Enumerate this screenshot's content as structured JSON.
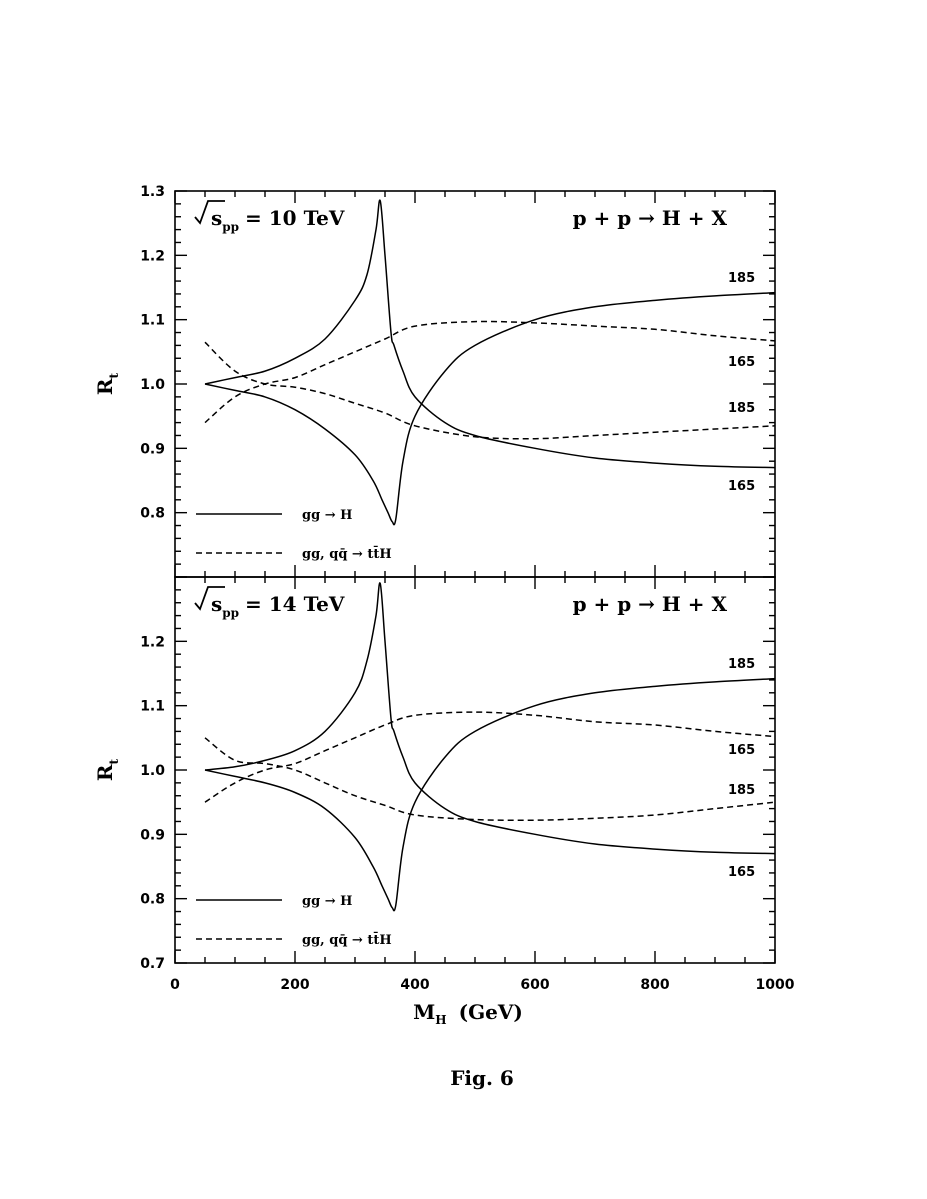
{
  "figure_caption": "Fig. 6",
  "chart_data": [
    {
      "type": "line",
      "panel": "top",
      "energy_label_prefix": "s",
      "energy_label_sub": "pp",
      "energy_label_value": "= 10 TeV",
      "process_label": "p + p → H + X",
      "ylabel": "R",
      "ylabel_sub": "t",
      "xlabel": "",
      "xlim": [
        0,
        1000
      ],
      "ylim": [
        0.7,
        1.3
      ],
      "yticks": [
        0.8,
        0.9,
        1.0,
        1.1,
        1.2,
        1.3
      ],
      "ytick_labels": [
        "0.8",
        "0.9",
        "1.0",
        "1.1",
        "1.2",
        "1.3"
      ],
      "legend": [
        {
          "text": "gg → H",
          "style": "solid"
        },
        {
          "text": "gg, qq̄ → tt̄H",
          "style": "dashed"
        }
      ],
      "series": [
        {
          "label": "165",
          "style": "solid",
          "x": [
            50,
            100,
            150,
            200,
            250,
            300,
            320,
            335,
            342,
            350,
            360,
            365,
            380,
            400,
            450,
            500,
            600,
            700,
            800,
            900,
            1000
          ],
          "y": [
            1.0,
            1.01,
            1.02,
            1.04,
            1.07,
            1.13,
            1.17,
            1.24,
            1.285,
            1.2,
            1.08,
            1.06,
            1.02,
            0.98,
            0.94,
            0.92,
            0.9,
            0.885,
            0.877,
            0.872,
            0.87
          ]
        },
        {
          "label": "185",
          "style": "solid",
          "x": [
            50,
            100,
            150,
            200,
            250,
            300,
            330,
            345,
            355,
            362,
            368,
            380,
            400,
            450,
            500,
            600,
            700,
            800,
            900,
            1000
          ],
          "y": [
            1.0,
            0.99,
            0.98,
            0.96,
            0.93,
            0.89,
            0.85,
            0.82,
            0.8,
            0.786,
            0.79,
            0.88,
            0.95,
            1.02,
            1.06,
            1.1,
            1.12,
            1.13,
            1.137,
            1.142
          ]
        },
        {
          "label": "165",
          "style": "dashed",
          "x": [
            50,
            100,
            150,
            200,
            250,
            300,
            350,
            400,
            500,
            600,
            700,
            800,
            900,
            1000
          ],
          "y": [
            0.94,
            0.98,
            1.0,
            1.01,
            1.03,
            1.05,
            1.07,
            1.09,
            1.097,
            1.095,
            1.09,
            1.085,
            1.075,
            1.067
          ]
        },
        {
          "label": "185",
          "style": "dashed",
          "x": [
            50,
            100,
            150,
            200,
            250,
            300,
            350,
            400,
            500,
            600,
            700,
            800,
            900,
            1000
          ],
          "y": [
            1.065,
            1.02,
            1.0,
            0.995,
            0.985,
            0.97,
            0.955,
            0.935,
            0.918,
            0.915,
            0.92,
            0.925,
            0.93,
            0.935
          ]
        }
      ]
    },
    {
      "type": "line",
      "panel": "bottom",
      "energy_label_prefix": "s",
      "energy_label_sub": "pp",
      "energy_label_value": "= 14 TeV",
      "process_label": "p + p → H + X",
      "ylabel": "R",
      "ylabel_sub": "t",
      "xlabel": "M",
      "xlabel_sub": "H",
      "xlabel_unit": "(GeV)",
      "xlim": [
        0,
        1000
      ],
      "ylim": [
        0.7,
        1.3
      ],
      "xticks": [
        0,
        200,
        400,
        600,
        800,
        1000
      ],
      "xtick_labels": [
        "0",
        "200",
        "400",
        "600",
        "800",
        "1000"
      ],
      "yticks": [
        0.7,
        0.8,
        0.9,
        1.0,
        1.1,
        1.2
      ],
      "ytick_labels": [
        "0.7",
        "0.8",
        "0.9",
        "1.0",
        "1.1",
        "1.2"
      ],
      "legend": [
        {
          "text": "gg → H",
          "style": "solid"
        },
        {
          "text": "gg, qq̄ → tt̄H",
          "style": "dashed"
        }
      ],
      "series": [
        {
          "label": "165",
          "style": "solid",
          "x": [
            50,
            100,
            150,
            200,
            250,
            300,
            320,
            335,
            342,
            350,
            360,
            365,
            380,
            400,
            450,
            500,
            600,
            700,
            800,
            900,
            1000
          ],
          "y": [
            1.0,
            1.005,
            1.015,
            1.03,
            1.06,
            1.12,
            1.17,
            1.24,
            1.29,
            1.2,
            1.08,
            1.06,
            1.02,
            0.98,
            0.94,
            0.92,
            0.9,
            0.885,
            0.877,
            0.872,
            0.87
          ]
        },
        {
          "label": "185",
          "style": "solid",
          "x": [
            50,
            100,
            150,
            200,
            250,
            300,
            330,
            345,
            355,
            362,
            368,
            380,
            400,
            450,
            500,
            600,
            700,
            800,
            900,
            1000
          ],
          "y": [
            1.0,
            0.99,
            0.98,
            0.965,
            0.94,
            0.895,
            0.85,
            0.82,
            0.8,
            0.786,
            0.79,
            0.88,
            0.95,
            1.02,
            1.06,
            1.1,
            1.12,
            1.13,
            1.137,
            1.142
          ]
        },
        {
          "label": "165",
          "style": "dashed",
          "x": [
            50,
            100,
            150,
            200,
            250,
            300,
            350,
            400,
            500,
            600,
            700,
            800,
            900,
            1000
          ],
          "y": [
            0.95,
            0.98,
            1.0,
            1.01,
            1.03,
            1.05,
            1.07,
            1.085,
            1.09,
            1.085,
            1.075,
            1.07,
            1.06,
            1.052
          ]
        },
        {
          "label": "185",
          "style": "dashed",
          "x": [
            50,
            100,
            150,
            200,
            250,
            300,
            350,
            400,
            500,
            600,
            700,
            800,
            900,
            1000
          ],
          "y": [
            1.05,
            1.015,
            1.01,
            1.0,
            0.98,
            0.96,
            0.945,
            0.93,
            0.923,
            0.922,
            0.925,
            0.93,
            0.94,
            0.95
          ]
        }
      ]
    }
  ]
}
